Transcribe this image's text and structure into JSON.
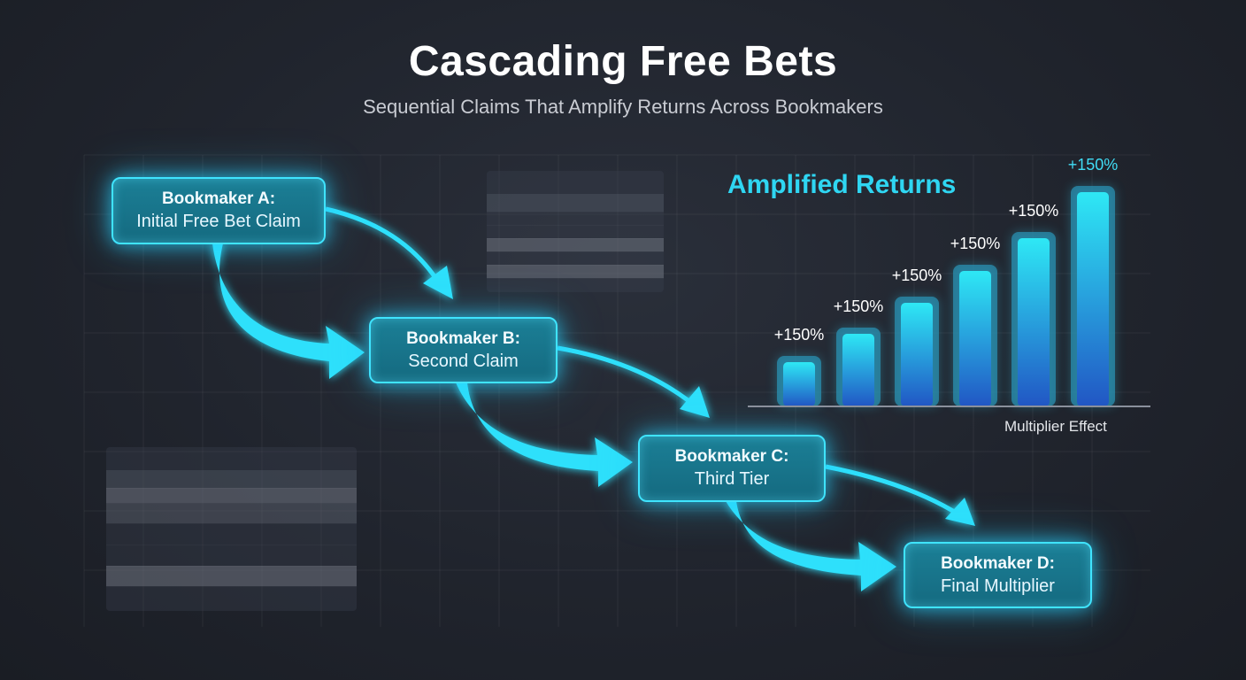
{
  "header": {
    "title": "Cascading Free Bets",
    "subtitle": "Sequential Claims That Amplify Returns Across Bookmakers"
  },
  "flow": {
    "nodes": [
      {
        "title": "Bookmaker A:",
        "subtitle": "Initial Free Bet Claim"
      },
      {
        "title": "Bookmaker B:",
        "subtitle": "Second Claim"
      },
      {
        "title": "Bookmaker C:",
        "subtitle": "Third Tier"
      },
      {
        "title": "Bookmaker D:",
        "subtitle": "Final Multiplier"
      }
    ]
  },
  "chart": {
    "title": "Amplified Returns",
    "bar_labels": [
      "+150%",
      "+150%",
      "+150%",
      "+150%",
      "+150%",
      "+150%"
    ],
    "axis_label": "Multiplier Effect"
  },
  "colors": {
    "accent": "#3fe4ff",
    "chart_title": "#2fd6f2",
    "bar_top": "#2ee8f5",
    "bar_bottom": "#2156c4",
    "background": "#22262f"
  }
}
